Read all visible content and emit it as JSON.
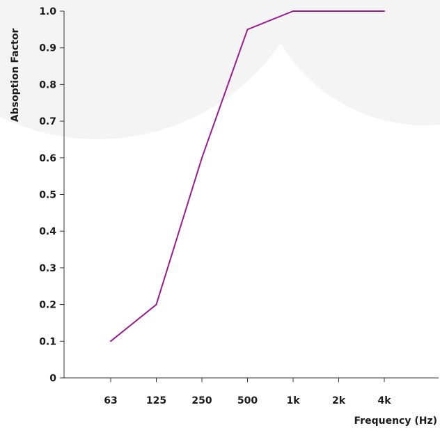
{
  "chart_data": {
    "type": "line",
    "title": "",
    "xlabel": "Frequency (Hz)",
    "ylabel": "Absoption Factor",
    "categories": [
      "63",
      "125",
      "250",
      "500",
      "1k",
      "2k",
      "4k"
    ],
    "yticks": [
      "0",
      "0.1",
      "0.2",
      "0.3",
      "0.4",
      "0.5",
      "0.6",
      "0.7",
      "0.8",
      "0.9",
      "1.0"
    ],
    "ylim": [
      0,
      1.0
    ],
    "grid": false,
    "legend": "none",
    "series": [
      {
        "values": [
          0.1,
          0.2,
          0.6,
          0.95,
          1.0,
          1.0,
          1.0
        ],
        "color": "#9b1b8f"
      }
    ],
    "axis_color": "#333333",
    "watermark_color": "#f2f2f2"
  }
}
